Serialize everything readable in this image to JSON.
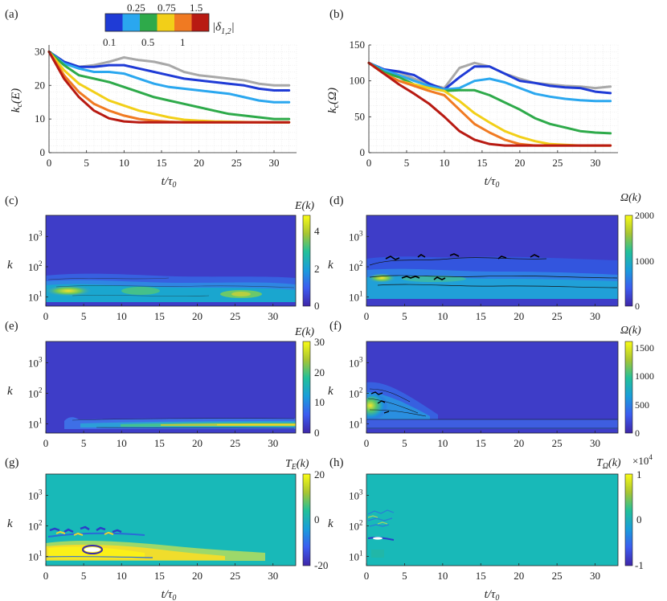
{
  "colors": {
    "axis": "#222222",
    "grid": "#e3e3e3",
    "bg_e": "#3a36c8",
    "gray_line": "#a8a8a8",
    "delta_scale": [
      "#1f3bd6",
      "#2aa7ef",
      "#2eaa4a",
      "#f2cf18",
      "#f07a22",
      "#b81a12"
    ]
  },
  "legend": {
    "title": "|δ",
    "title_sub": "1,2",
    "title_end": "|",
    "top_labels": [
      "0.25",
      "0.75",
      "1.5"
    ],
    "bottom_labels": [
      "0.1",
      "0.5",
      "1"
    ]
  },
  "panels": {
    "a": {
      "tag": "(a)",
      "ylabel": "k",
      "ylabel_sub": "c",
      "ylabel_arg": "(E)",
      "xlabel": "t/τ",
      "xlabel_sub": "0"
    },
    "b": {
      "tag": "(b)",
      "ylabel": "k",
      "ylabel_sub": "c",
      "ylabel_arg": "(Ω)",
      "xlabel": "t/τ",
      "xlabel_sub": "0"
    },
    "c": {
      "tag": "(c)",
      "colorbar_title": "E(k)",
      "colorbar_ticks": [
        "4",
        "2",
        "0"
      ],
      "ylabel": "k"
    },
    "d": {
      "tag": "(d)",
      "colorbar_title": "Ω(k)",
      "colorbar_ticks": [
        "2000",
        "1000",
        "0"
      ],
      "ylabel": "k"
    },
    "e": {
      "tag": "(e)",
      "colorbar_title": "E(k)",
      "colorbar_ticks": [
        "30",
        "20",
        "10",
        "0"
      ],
      "ylabel": "k"
    },
    "f": {
      "tag": "(f)",
      "colorbar_title": "Ω(k)",
      "colorbar_ticks": [
        "1500",
        "1000",
        "500",
        "0"
      ],
      "ylabel": "k"
    },
    "g": {
      "tag": "(g)",
      "colorbar_title": "T",
      "colorbar_title_sub": "E",
      "colorbar_title_arg": "(k)",
      "colorbar_ticks": [
        "20",
        "0",
        "-20"
      ],
      "ylabel": "k",
      "xlabel": "t/τ",
      "xlabel_sub": "0"
    },
    "h": {
      "tag": "(h)",
      "colorbar_title": "T",
      "colorbar_title_sub": "Ω",
      "colorbar_title_arg": "(k)",
      "colorbar_exponent": "×10",
      "colorbar_exponent_sup": "4",
      "colorbar_ticks": [
        "1",
        "0",
        "-1"
      ],
      "ylabel": "k",
      "xlabel": "t/τ",
      "xlabel_sub": "0"
    }
  },
  "log_ticks": [
    "10",
    "3",
    "10",
    "2",
    "10",
    "1"
  ],
  "chart_data": [
    {
      "id": "a",
      "type": "line",
      "xlim": [
        0,
        33
      ],
      "ylim": [
        0,
        32
      ],
      "xticks": [
        0,
        5,
        10,
        15,
        20,
        25,
        30
      ],
      "yticks": [
        0,
        10,
        20,
        30
      ],
      "x": [
        0,
        2,
        4,
        6,
        8,
        10,
        12,
        14,
        16,
        18,
        20,
        22,
        24,
        26,
        28,
        30,
        32
      ],
      "series": [
        {
          "name": "gray",
          "values": [
            30,
            27,
            25.5,
            26,
            27,
            28.3,
            27.5,
            27,
            26,
            24,
            23,
            22.5,
            22,
            21.5,
            20.5,
            20,
            20
          ]
        },
        {
          "name": "0.1",
          "values": [
            30,
            27,
            25.5,
            25.5,
            26,
            26,
            25,
            24,
            23,
            22,
            21.5,
            21,
            20.5,
            20,
            19,
            18.5,
            18.5
          ]
        },
        {
          "name": "0.25",
          "values": [
            30,
            26.5,
            25,
            24,
            24,
            23.5,
            22,
            20.5,
            19.5,
            19,
            18.5,
            18,
            17.5,
            16.5,
            15.5,
            15,
            15
          ]
        },
        {
          "name": "0.5",
          "values": [
            30,
            26,
            23,
            22,
            21,
            19.5,
            18,
            16.5,
            15.5,
            14.5,
            13.5,
            12.5,
            11.5,
            11,
            10.5,
            10,
            10
          ]
        },
        {
          "name": "0.75",
          "values": [
            30,
            24.5,
            20.5,
            18,
            15.5,
            14,
            12.5,
            11.5,
            10.5,
            9.8,
            9.5,
            9.3,
            9.2,
            9.1,
            9,
            9,
            9
          ]
        },
        {
          "name": "1",
          "values": [
            30,
            23,
            18,
            14.5,
            12.5,
            11,
            10,
            9.5,
            9.2,
            9,
            9,
            9,
            9,
            9,
            9,
            9,
            9
          ]
        },
        {
          "name": "1.5",
          "values": [
            30,
            22,
            16.5,
            12.5,
            10.2,
            9.3,
            9,
            9,
            9,
            9,
            9,
            9,
            9,
            9,
            9,
            9,
            9
          ]
        }
      ]
    },
    {
      "id": "b",
      "type": "line",
      "xlim": [
        0,
        33
      ],
      "ylim": [
        0,
        150
      ],
      "xticks": [
        0,
        5,
        10,
        15,
        20,
        25,
        30
      ],
      "yticks": [
        0,
        50,
        100,
        150
      ],
      "x": [
        0,
        2,
        4,
        6,
        8,
        10,
        12,
        14,
        16,
        18,
        20,
        22,
        24,
        26,
        28,
        30,
        32
      ],
      "series": [
        {
          "name": "gray",
          "values": [
            125,
            115,
            112,
            103,
            95,
            90,
            118,
            125,
            120,
            110,
            103,
            97,
            95,
            93,
            92,
            90,
            92
          ]
        },
        {
          "name": "0.1",
          "values": [
            125,
            116,
            113,
            108,
            96,
            88,
            105,
            120,
            120,
            110,
            100,
            97,
            93,
            91,
            90,
            85,
            83
          ]
        },
        {
          "name": "0.25",
          "values": [
            125,
            115,
            108,
            100,
            93,
            88,
            90,
            100,
            103,
            98,
            90,
            82,
            78,
            75,
            73,
            72,
            72
          ]
        },
        {
          "name": "0.5",
          "values": [
            125,
            112,
            105,
            95,
            90,
            86,
            87,
            87,
            80,
            70,
            60,
            48,
            40,
            35,
            30,
            28,
            27
          ]
        },
        {
          "name": "0.75",
          "values": [
            125,
            110,
            100,
            95,
            90,
            86,
            72,
            55,
            42,
            30,
            22,
            16,
            12,
            11,
            10,
            10,
            10
          ]
        },
        {
          "name": "1",
          "values": [
            125,
            110,
            100,
            93,
            86,
            80,
            60,
            40,
            28,
            18,
            12,
            10,
            10,
            10,
            10,
            10,
            10
          ]
        },
        {
          "name": "1.5",
          "values": [
            125,
            110,
            95,
            82,
            68,
            50,
            30,
            18,
            12,
            10,
            10,
            10,
            10,
            10,
            10,
            10,
            10
          ]
        }
      ]
    },
    {
      "id": "c",
      "type": "heatmap",
      "xlim": [
        0,
        33
      ],
      "klim": [
        5,
        5000
      ],
      "xticks": [
        0,
        5,
        10,
        15,
        20,
        25,
        30
      ],
      "clim": [
        0,
        5
      ]
    },
    {
      "id": "d",
      "type": "heatmap",
      "xlim": [
        0,
        33
      ],
      "klim": [
        5,
        5000
      ],
      "xticks": [
        0,
        5,
        10,
        15,
        20,
        25,
        30
      ],
      "clim": [
        0,
        2000
      ]
    },
    {
      "id": "e",
      "type": "heatmap",
      "xlim": [
        0,
        33
      ],
      "klim": [
        5,
        5000
      ],
      "xticks": [
        0,
        5,
        10,
        15,
        20,
        25,
        30
      ],
      "clim": [
        0,
        30
      ]
    },
    {
      "id": "f",
      "type": "heatmap",
      "xlim": [
        0,
        33
      ],
      "klim": [
        5,
        5000
      ],
      "xticks": [
        0,
        5,
        10,
        15,
        20,
        25,
        30
      ],
      "clim": [
        0,
        1600
      ]
    },
    {
      "id": "g",
      "type": "heatmap",
      "xlim": [
        0,
        33
      ],
      "klim": [
        5,
        5000
      ],
      "xticks": [
        0,
        5,
        10,
        15,
        20,
        25,
        30
      ],
      "clim": [
        -20,
        20
      ]
    },
    {
      "id": "h",
      "type": "heatmap",
      "xlim": [
        0,
        33
      ],
      "klim": [
        5,
        5000
      ],
      "xticks": [
        0,
        5,
        10,
        15,
        20,
        25,
        30
      ],
      "clim": [
        -1,
        1
      ]
    }
  ]
}
